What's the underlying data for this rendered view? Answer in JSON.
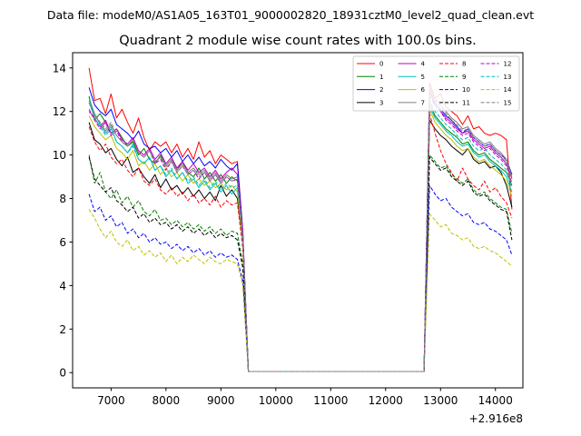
{
  "suptitle": "Data file: modeM0/AS1A05_163T01_9000002820_18931cztM0_level2_quad_clean.evt",
  "chart_data": {
    "type": "line",
    "title": "Quadrant 2 module wise count rates with 100.0s bins.",
    "xlabel": "",
    "ylabel": "",
    "x_offset_label": "+2.916e8",
    "xlim": [
      6300,
      14500
    ],
    "ylim": [
      -0.7,
      14.7
    ],
    "xticks": [
      7000,
      8000,
      9000,
      10000,
      11000,
      12000,
      13000,
      14000
    ],
    "xtick_labels": [
      "7000",
      "8000",
      "9000",
      "10000",
      "11000",
      "12000",
      "13000",
      "14000"
    ],
    "yticks": [
      0,
      2,
      4,
      6,
      8,
      10,
      12,
      14
    ],
    "ytick_labels": [
      "0",
      "2",
      "4",
      "6",
      "8",
      "10",
      "12",
      "14"
    ],
    "grid": false,
    "legend_position": "top-right",
    "segments": {
      "seg1_x": [
        6600,
        6700,
        6800,
        6900,
        7000,
        7100,
        7200,
        7300,
        7400,
        7500,
        7600,
        7700,
        7800,
        7900,
        8000,
        8100,
        8200,
        8300,
        8400,
        8500,
        8600,
        8700,
        8800,
        8900,
        9000,
        9100,
        9200,
        9300,
        9400
      ],
      "gap_x": [
        9500,
        9600,
        9700,
        9800,
        9900,
        10000,
        10100,
        10200,
        10300,
        10400,
        10500,
        10600,
        10700,
        10800,
        10900,
        11000,
        11100,
        11200,
        11300,
        11400,
        11500,
        11600,
        11700,
        11800,
        11900,
        12000,
        12100,
        12200,
        12300,
        12400,
        12500,
        12600,
        12700
      ],
      "seg2_x": [
        12800,
        12900,
        13000,
        13100,
        13200,
        13300,
        13400,
        13500,
        13600,
        13700,
        13800,
        13900,
        14000,
        14100,
        14200,
        14300
      ]
    },
    "series": [
      {
        "name": "0",
        "color": "#ff0000",
        "dash": "solid",
        "seg1": [
          14.0,
          12.5,
          12.6,
          11.9,
          12.8,
          11.7,
          12.1,
          11.5,
          11.0,
          11.7,
          10.8,
          10.2,
          10.6,
          10.4,
          10.6,
          10.1,
          10.5,
          9.9,
          10.3,
          9.8,
          10.6,
          9.9,
          10.2,
          9.6,
          10.0,
          9.8,
          9.6,
          9.7,
          6.5
        ],
        "gap": 0.05,
        "seg2": [
          13.3,
          12.6,
          12.8,
          12.2,
          12.0,
          11.8,
          11.4,
          11.8,
          11.2,
          11.3,
          11.0,
          10.9,
          11.0,
          10.9,
          10.7,
          7.5
        ]
      },
      {
        "name": "1",
        "color": "#008000",
        "dash": "solid",
        "seg1": [
          12.7,
          11.6,
          11.9,
          11.5,
          11.0,
          11.2,
          10.8,
          10.4,
          10.6,
          10.0,
          10.3,
          9.8,
          9.6,
          10.0,
          9.5,
          9.8,
          9.3,
          9.7,
          9.2,
          9.0,
          9.4,
          8.9,
          9.2,
          8.8,
          9.1,
          8.7,
          9.0,
          8.8,
          6.3
        ],
        "gap": 0.05,
        "seg2": [
          12.4,
          11.8,
          11.5,
          11.2,
          11.0,
          10.8,
          10.5,
          10.6,
          10.2,
          10.0,
          10.1,
          9.8,
          9.6,
          9.4,
          9.2,
          8.6
        ]
      },
      {
        "name": "2",
        "color": "#0000ff",
        "dash": "solid",
        "seg1": [
          13.1,
          12.3,
          12.0,
          11.8,
          12.1,
          11.4,
          11.2,
          11.0,
          10.7,
          11.1,
          10.5,
          10.3,
          10.4,
          10.1,
          10.3,
          9.9,
          10.2,
          9.7,
          10.0,
          9.6,
          9.9,
          9.5,
          9.7,
          9.4,
          9.8,
          9.5,
          9.3,
          9.6,
          6.4
        ],
        "gap": 0.05,
        "seg2": [
          13.0,
          12.3,
          12.1,
          11.8,
          11.6,
          11.3,
          11.0,
          11.2,
          10.8,
          10.6,
          10.4,
          10.5,
          10.2,
          10.0,
          9.8,
          9.1
        ]
      },
      {
        "name": "3",
        "color": "#000000",
        "dash": "solid",
        "seg1": [
          11.5,
          10.7,
          10.5,
          10.1,
          10.3,
          9.8,
          9.5,
          9.9,
          9.2,
          9.4,
          9.0,
          8.7,
          9.1,
          8.5,
          8.9,
          8.4,
          8.6,
          8.2,
          8.5,
          8.1,
          8.4,
          8.0,
          8.3,
          7.9,
          8.6,
          8.1,
          8.4,
          8.0,
          6.0
        ],
        "gap": 0.05,
        "seg2": [
          11.6,
          11.2,
          10.9,
          10.7,
          10.4,
          10.2,
          10.0,
          10.3,
          9.8,
          9.6,
          9.7,
          9.4,
          9.5,
          9.2,
          8.6,
          7.6
        ]
      },
      {
        "name": "4",
        "color": "#bf00bf",
        "dash": "solid",
        "seg1": [
          12.0,
          11.7,
          11.3,
          11.6,
          11.0,
          11.2,
          10.7,
          10.5,
          10.8,
          10.2,
          10.0,
          10.3,
          9.8,
          10.1,
          9.6,
          9.9,
          9.4,
          9.7,
          9.3,
          9.6,
          9.2,
          9.4,
          9.0,
          9.3,
          8.9,
          9.2,
          9.4,
          9.1,
          6.3
        ],
        "gap": 0.05,
        "seg2": [
          12.9,
          12.4,
          12.0,
          11.7,
          11.5,
          11.2,
          11.0,
          11.1,
          10.7,
          10.5,
          10.3,
          10.4,
          10.1,
          9.9,
          9.6,
          8.9
        ]
      },
      {
        "name": "5",
        "color": "#00bfbf",
        "dash": "solid",
        "seg1": [
          12.6,
          11.9,
          11.4,
          11.0,
          11.3,
          10.6,
          10.4,
          10.1,
          10.5,
          9.8,
          9.6,
          9.9,
          9.3,
          9.5,
          9.0,
          9.3,
          8.9,
          9.2,
          8.7,
          8.9,
          8.5,
          8.8,
          8.4,
          8.7,
          8.3,
          8.6,
          8.2,
          8.5,
          6.1
        ],
        "gap": 0.05,
        "seg2": [
          12.2,
          11.7,
          11.4,
          11.1,
          10.9,
          10.6,
          10.4,
          10.5,
          10.1,
          9.9,
          10.0,
          9.7,
          9.5,
          9.3,
          9.0,
          8.3
        ]
      },
      {
        "name": "6",
        "color": "#bfbf00",
        "dash": "solid",
        "seg1": [
          11.8,
          11.3,
          11.0,
          10.7,
          10.9,
          10.3,
          10.1,
          9.8,
          10.2,
          9.5,
          9.7,
          9.3,
          9.6,
          9.1,
          9.4,
          9.0,
          9.2,
          8.8,
          9.1,
          8.7,
          8.9,
          8.6,
          8.8,
          8.5,
          8.7,
          8.4,
          8.6,
          8.3,
          6.0
        ],
        "gap": 0.05,
        "seg2": [
          12.1,
          11.5,
          11.2,
          10.9,
          10.7,
          10.4,
          10.2,
          10.3,
          9.9,
          9.7,
          9.8,
          9.5,
          9.3,
          9.1,
          8.8,
          8.1
        ]
      },
      {
        "name": "7",
        "color": "#808080",
        "dash": "solid",
        "seg1": [
          12.4,
          11.8,
          11.5,
          11.1,
          11.4,
          10.9,
          10.6,
          10.4,
          10.7,
          10.1,
          9.9,
          10.2,
          9.7,
          9.9,
          9.5,
          9.8,
          9.3,
          9.6,
          9.2,
          9.4,
          9.1,
          9.3,
          8.9,
          9.2,
          8.8,
          9.1,
          8.9,
          9.0,
          6.2
        ],
        "gap": 0.05,
        "seg2": [
          13.1,
          12.6,
          12.3,
          12.0,
          11.7,
          11.5,
          11.2,
          11.3,
          10.9,
          10.7,
          10.5,
          10.6,
          10.3,
          10.1,
          9.8,
          9.0
        ]
      },
      {
        "name": "8",
        "color": "#ff0000",
        "dash": "dashed",
        "seg1": [
          11.3,
          10.6,
          10.2,
          10.5,
          9.9,
          9.6,
          9.8,
          9.3,
          9.0,
          9.4,
          8.8,
          8.6,
          8.9,
          8.4,
          8.2,
          8.5,
          8.1,
          8.3,
          7.9,
          8.2,
          7.8,
          8.0,
          7.7,
          8.1,
          7.6,
          7.9,
          7.7,
          7.8,
          5.7
        ],
        "gap": 0.05,
        "seg2": [
          11.9,
          11.0,
          10.2,
          9.6,
          9.2,
          8.8,
          9.4,
          8.9,
          8.6,
          8.4,
          8.8,
          8.3,
          8.5,
          8.1,
          7.8,
          7.1
        ]
      },
      {
        "name": "9",
        "color": "#008000",
        "dash": "dashed",
        "seg1": [
          10.0,
          8.7,
          9.2,
          8.3,
          8.0,
          8.4,
          7.8,
          8.1,
          7.6,
          7.9,
          7.4,
          7.2,
          7.5,
          7.0,
          7.1,
          6.8,
          7.0,
          6.7,
          6.9,
          6.6,
          6.8,
          6.5,
          6.7,
          6.4,
          6.6,
          6.3,
          6.5,
          6.4,
          5.0
        ],
        "gap": 0.05,
        "seg2": [
          10.0,
          9.7,
          9.4,
          9.5,
          9.1,
          8.9,
          8.7,
          8.9,
          8.4,
          8.2,
          8.3,
          8.0,
          7.8,
          7.6,
          7.5,
          6.4
        ]
      },
      {
        "name": "10",
        "color": "#0000ff",
        "dash": "dashed",
        "seg1": [
          8.2,
          7.4,
          7.6,
          7.0,
          7.2,
          6.7,
          6.9,
          6.4,
          6.6,
          6.2,
          6.4,
          6.0,
          6.2,
          5.9,
          6.0,
          5.7,
          5.9,
          5.6,
          5.8,
          5.5,
          5.7,
          5.4,
          5.6,
          5.3,
          5.5,
          5.3,
          5.4,
          5.2,
          4.2
        ],
        "gap": 0.05,
        "seg2": [
          8.6,
          8.2,
          7.9,
          8.0,
          7.6,
          7.4,
          7.2,
          7.3,
          6.9,
          6.8,
          6.9,
          6.6,
          6.5,
          6.3,
          6.1,
          5.4
        ]
      },
      {
        "name": "11",
        "color": "#000000",
        "dash": "dashed",
        "seg1": [
          9.9,
          8.9,
          8.6,
          8.3,
          8.5,
          7.9,
          7.7,
          7.4,
          7.6,
          7.1,
          7.3,
          6.9,
          7.1,
          6.8,
          6.9,
          6.6,
          6.8,
          6.5,
          6.7,
          6.4,
          6.6,
          6.3,
          6.5,
          6.2,
          6.4,
          6.2,
          6.3,
          6.1,
          4.8
        ],
        "gap": 0.05,
        "seg2": [
          9.9,
          9.6,
          9.3,
          9.4,
          9.0,
          8.8,
          8.6,
          8.8,
          8.3,
          8.1,
          8.2,
          7.9,
          7.7,
          7.5,
          7.4,
          6.1
        ]
      },
      {
        "name": "12",
        "color": "#bf00bf",
        "dash": "dashed",
        "seg1": [
          12.1,
          11.6,
          11.2,
          11.5,
          10.9,
          11.1,
          10.6,
          10.4,
          10.7,
          10.1,
          9.9,
          10.2,
          9.6,
          9.8,
          9.3,
          9.7,
          9.2,
          9.5,
          9.1,
          9.3,
          8.9,
          9.2,
          8.8,
          9.1,
          8.7,
          9.0,
          8.8,
          8.9,
          6.2
        ],
        "gap": 0.05,
        "seg2": [
          12.7,
          12.3,
          12.0,
          11.6,
          11.4,
          11.1,
          10.9,
          11.0,
          10.6,
          10.4,
          10.2,
          10.3,
          10.0,
          9.8,
          9.5,
          8.7
        ]
      },
      {
        "name": "13",
        "color": "#00bfbf",
        "dash": "dashed",
        "seg1": [
          12.4,
          11.7,
          11.3,
          10.9,
          11.2,
          10.6,
          10.4,
          10.1,
          10.4,
          9.8,
          9.6,
          9.9,
          9.3,
          9.5,
          9.1,
          9.4,
          8.9,
          9.2,
          8.8,
          9.0,
          8.6,
          8.9,
          8.5,
          8.8,
          8.4,
          8.7,
          8.5,
          8.6,
          6.1
        ],
        "gap": 0.05,
        "seg2": [
          12.5,
          12.0,
          11.7,
          11.4,
          11.2,
          10.9,
          10.7,
          10.8,
          10.4,
          10.2,
          10.3,
          10.0,
          9.8,
          9.6,
          9.3,
          8.5
        ]
      },
      {
        "name": "14",
        "color": "#bfbf00",
        "dash": "dashed",
        "seg1": [
          7.5,
          7.1,
          6.6,
          6.2,
          6.5,
          6.0,
          5.8,
          6.1,
          5.6,
          5.8,
          5.4,
          5.6,
          5.3,
          5.5,
          5.1,
          5.4,
          5.0,
          5.3,
          5.1,
          5.4,
          5.2,
          5.0,
          5.3,
          5.1,
          5.0,
          5.2,
          5.1,
          5.0,
          4.0
        ],
        "gap": 0.05,
        "seg2": [
          7.3,
          7.0,
          6.7,
          6.8,
          6.4,
          6.3,
          6.1,
          6.2,
          5.8,
          5.7,
          5.8,
          5.6,
          5.5,
          5.3,
          5.1,
          4.9
        ]
      },
      {
        "name": "15",
        "color": "#808080",
        "dash": "dashed",
        "seg1": [
          12.5,
          11.9,
          11.5,
          11.2,
          11.5,
          10.9,
          10.6,
          10.4,
          10.7,
          10.1,
          9.9,
          10.2,
          9.7,
          9.9,
          9.4,
          9.7,
          9.2,
          9.5,
          9.1,
          9.3,
          9.0,
          9.2,
          8.8,
          9.1,
          8.7,
          9.0,
          8.8,
          8.9,
          6.2
        ],
        "gap": 0.05,
        "seg2": [
          13.0,
          12.5,
          12.2,
          11.9,
          11.6,
          11.4,
          11.1,
          11.2,
          10.8,
          10.6,
          10.4,
          10.5,
          10.2,
          10.0,
          9.7,
          8.9
        ]
      }
    ]
  }
}
